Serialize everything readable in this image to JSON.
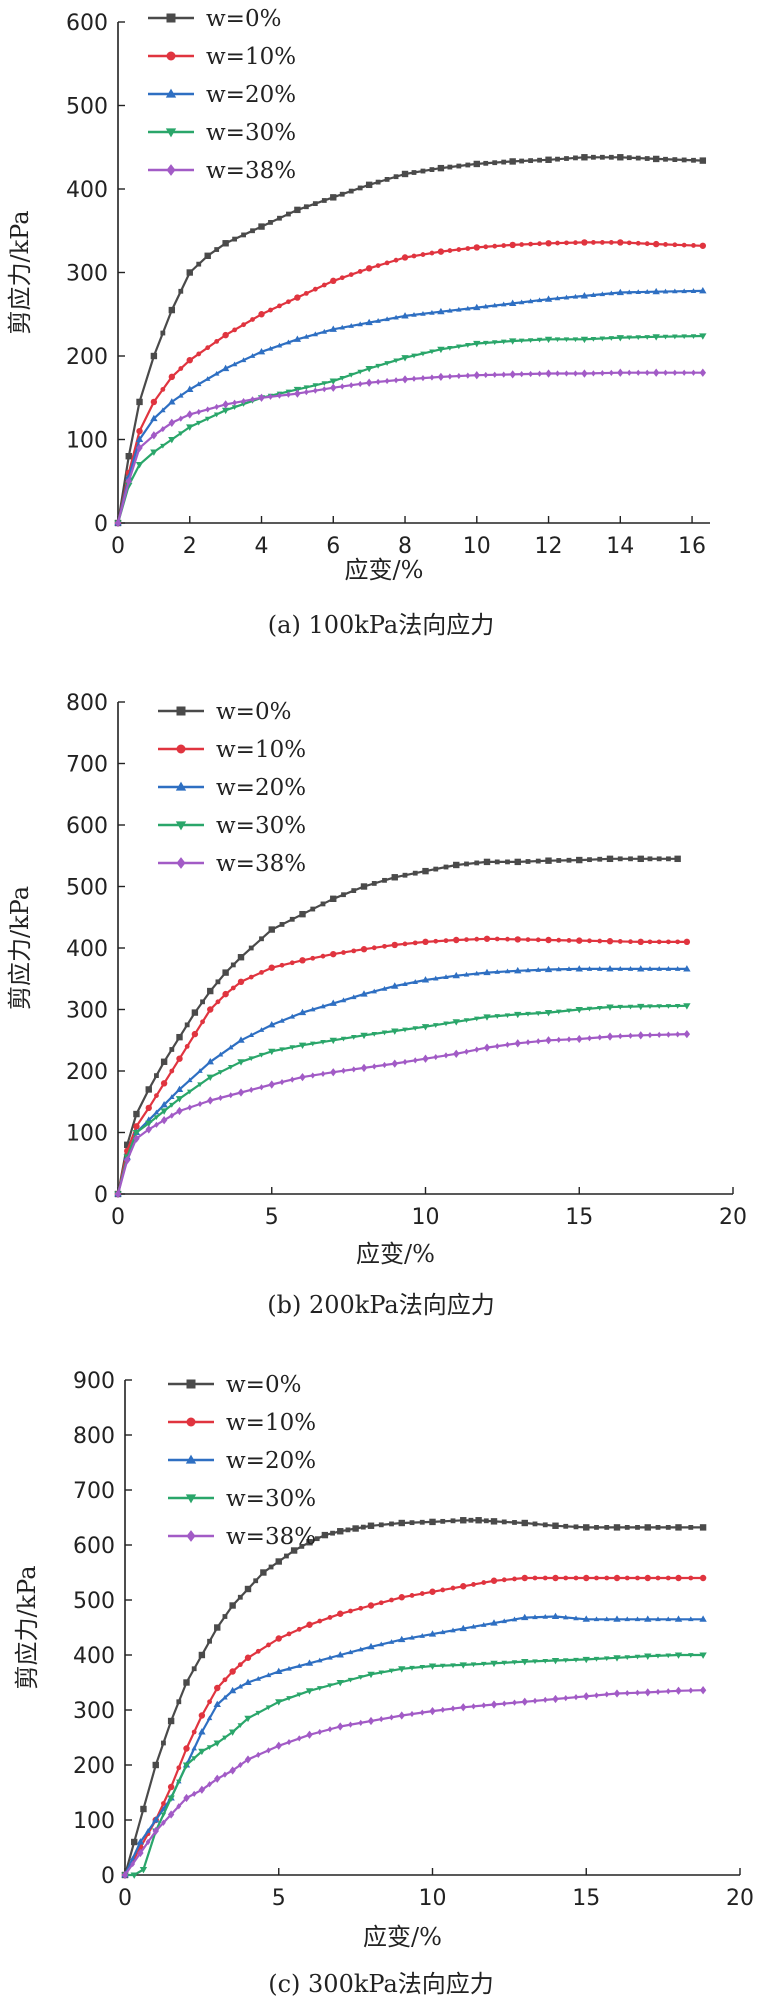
{
  "colors": {
    "w0": "#4a4a4a",
    "w10": "#e0343f",
    "w20": "#2e6fc2",
    "w30": "#2aa66a",
    "w38": "#a25bc6"
  },
  "markers": {
    "w0": "square",
    "w10": "circle",
    "w20": "triangle-up",
    "w30": "triangle-down",
    "w38": "diamond"
  },
  "legend": [
    "w=0%",
    "w=10%",
    "w=20%",
    "w=30%",
    "w=38%"
  ],
  "chart_data": [
    {
      "type": "line",
      "title": "(a) 100kPa法向应力",
      "xlabel": "应变/%",
      "ylabel": "剪应力/kPa",
      "xlim": [
        0,
        16.5
      ],
      "ylim": [
        0,
        600
      ],
      "xticks": [
        0,
        2,
        4,
        6,
        8,
        10,
        12,
        14,
        16
      ],
      "yticks": [
        0,
        100,
        200,
        300,
        400,
        500,
        600
      ],
      "legend_position": "top-left",
      "series": [
        {
          "name": "w=0%",
          "key": "w0",
          "x": [
            0,
            0.3,
            0.6,
            1,
            1.5,
            2,
            2.5,
            3,
            4,
            5,
            6,
            7,
            8,
            9,
            10,
            11,
            12,
            13,
            14,
            15,
            16.3
          ],
          "y": [
            0,
            80,
            145,
            200,
            255,
            300,
            320,
            335,
            355,
            375,
            390,
            405,
            418,
            425,
            430,
            433,
            435,
            438,
            438,
            436,
            434
          ]
        },
        {
          "name": "w=10%",
          "key": "w10",
          "x": [
            0,
            0.3,
            0.6,
            1,
            1.5,
            2,
            3,
            4,
            5,
            6,
            7,
            8,
            9,
            10,
            11,
            12,
            13,
            14,
            15,
            16.3
          ],
          "y": [
            0,
            60,
            110,
            145,
            175,
            195,
            225,
            250,
            270,
            290,
            305,
            318,
            325,
            330,
            333,
            335,
            336,
            336,
            334,
            332
          ]
        },
        {
          "name": "w=20%",
          "key": "w20",
          "x": [
            0,
            0.3,
            0.6,
            1,
            1.5,
            2,
            3,
            4,
            5,
            6,
            7,
            8,
            9,
            10,
            11,
            12,
            13,
            14,
            15,
            16.3
          ],
          "y": [
            0,
            55,
            100,
            125,
            145,
            160,
            185,
            205,
            220,
            232,
            240,
            248,
            253,
            258,
            263,
            268,
            272,
            276,
            277,
            278
          ]
        },
        {
          "name": "w=30%",
          "key": "w30",
          "x": [
            0,
            0.3,
            0.6,
            1,
            1.5,
            2,
            3,
            4,
            5,
            6,
            7,
            8,
            9,
            10,
            11,
            12,
            13,
            14,
            15,
            16.3
          ],
          "y": [
            0,
            45,
            70,
            85,
            100,
            115,
            135,
            150,
            160,
            170,
            185,
            198,
            208,
            215,
            218,
            220,
            220,
            222,
            223,
            224
          ]
        },
        {
          "name": "w=38%",
          "key": "w38",
          "x": [
            0,
            0.3,
            0.6,
            1,
            1.5,
            2,
            3,
            4,
            5,
            6,
            7,
            8,
            9,
            10,
            11,
            12,
            13,
            14,
            15,
            16.3
          ],
          "y": [
            0,
            50,
            90,
            105,
            120,
            130,
            142,
            150,
            155,
            162,
            168,
            172,
            175,
            177,
            178,
            179,
            179,
            180,
            180,
            180
          ]
        }
      ]
    },
    {
      "type": "line",
      "title": "(b) 200kPa法向应力",
      "xlabel": "应变/%",
      "ylabel": "剪应力/kPa",
      "xlim": [
        0,
        20
      ],
      "ylim": [
        0,
        800
      ],
      "xticks": [
        0,
        5,
        10,
        15,
        20
      ],
      "yticks": [
        0,
        100,
        200,
        300,
        400,
        500,
        600,
        700,
        800
      ],
      "legend_position": "top-left",
      "series": [
        {
          "name": "w=0%",
          "key": "w0",
          "x": [
            0,
            0.3,
            0.6,
            1,
            1.5,
            2,
            2.5,
            3,
            3.5,
            4,
            5,
            6,
            7,
            8,
            9,
            10,
            11,
            12,
            13,
            14,
            15,
            16,
            17,
            18.2
          ],
          "y": [
            0,
            80,
            130,
            170,
            215,
            255,
            295,
            330,
            360,
            385,
            430,
            455,
            480,
            500,
            515,
            525,
            535,
            540,
            540,
            542,
            543,
            545,
            545,
            545
          ]
        },
        {
          "name": "w=10%",
          "key": "w10",
          "x": [
            0,
            0.3,
            0.6,
            1,
            1.5,
            2,
            2.5,
            3,
            3.5,
            4,
            5,
            6,
            7,
            8,
            9,
            10,
            11,
            12,
            13,
            14,
            15,
            16,
            17,
            18.5
          ],
          "y": [
            0,
            70,
            110,
            140,
            180,
            220,
            260,
            300,
            325,
            345,
            368,
            380,
            390,
            398,
            405,
            410,
            413,
            415,
            414,
            413,
            412,
            411,
            410,
            410
          ]
        },
        {
          "name": "w=20%",
          "key": "w20",
          "x": [
            0,
            0.3,
            0.6,
            1,
            1.5,
            2,
            3,
            4,
            5,
            6,
            7,
            8,
            9,
            10,
            11,
            12,
            13,
            14,
            15,
            16,
            17,
            18.5
          ],
          "y": [
            0,
            60,
            100,
            120,
            145,
            170,
            215,
            250,
            275,
            295,
            310,
            325,
            338,
            348,
            355,
            360,
            363,
            365,
            366,
            366,
            366,
            366
          ]
        },
        {
          "name": "w=30%",
          "key": "w30",
          "x": [
            0,
            0.3,
            0.6,
            1,
            1.5,
            2,
            3,
            4,
            5,
            6,
            7,
            8,
            9,
            10,
            11,
            12,
            13,
            14,
            15,
            16,
            17,
            18.5
          ],
          "y": [
            0,
            60,
            100,
            115,
            135,
            155,
            190,
            215,
            232,
            242,
            250,
            258,
            265,
            272,
            280,
            288,
            292,
            295,
            300,
            304,
            305,
            306
          ]
        },
        {
          "name": "w=38%",
          "key": "w38",
          "x": [
            0,
            0.3,
            0.6,
            1,
            1.5,
            2,
            3,
            4,
            5,
            6,
            7,
            8,
            9,
            10,
            11,
            12,
            13,
            14,
            15,
            16,
            17,
            18.5
          ],
          "y": [
            0,
            55,
            90,
            105,
            120,
            135,
            152,
            165,
            178,
            190,
            198,
            205,
            212,
            220,
            228,
            238,
            245,
            250,
            252,
            256,
            258,
            260
          ]
        }
      ]
    },
    {
      "type": "line",
      "title": "(c) 300kPa法向应力",
      "xlabel": "应变/%",
      "ylabel": "剪应力/kPa",
      "xlim": [
        0,
        20
      ],
      "ylim": [
        0,
        900
      ],
      "xticks": [
        0,
        5,
        10,
        15,
        20
      ],
      "yticks": [
        0,
        100,
        200,
        300,
        400,
        500,
        600,
        700,
        800,
        900
      ],
      "legend_position": "top-left",
      "series": [
        {
          "name": "w=0%",
          "key": "w0",
          "x": [
            0,
            0.3,
            0.6,
            1,
            1.5,
            2,
            2.5,
            3,
            3.5,
            4,
            4.5,
            5,
            5.5,
            6,
            6.5,
            7,
            7.5,
            8,
            9,
            10,
            11,
            11.5,
            12,
            13,
            14,
            15,
            16,
            17,
            18,
            18.8
          ],
          "y": [
            0,
            60,
            120,
            200,
            280,
            350,
            400,
            450,
            490,
            520,
            550,
            570,
            590,
            605,
            618,
            625,
            630,
            635,
            640,
            642,
            645,
            645,
            643,
            640,
            635,
            632,
            632,
            632,
            632,
            632
          ]
        },
        {
          "name": "w=10%",
          "key": "w10",
          "x": [
            0,
            0.5,
            1,
            1.5,
            2,
            2.5,
            3,
            3.5,
            4,
            5,
            6,
            7,
            8,
            9,
            10,
            11,
            12,
            13,
            14,
            15,
            16,
            17,
            18,
            18.8
          ],
          "y": [
            0,
            50,
            100,
            160,
            230,
            290,
            340,
            370,
            395,
            430,
            455,
            475,
            490,
            505,
            515,
            525,
            535,
            540,
            540,
            540,
            540,
            540,
            540,
            540
          ]
        },
        {
          "name": "w=20%",
          "key": "w20",
          "x": [
            0,
            0.5,
            1,
            1.5,
            2,
            2.5,
            3,
            3.5,
            4,
            5,
            6,
            7,
            8,
            9,
            10,
            11,
            12,
            13,
            14,
            15,
            16,
            17,
            18,
            18.8
          ],
          "y": [
            0,
            60,
            100,
            140,
            200,
            260,
            310,
            335,
            350,
            370,
            385,
            400,
            415,
            428,
            438,
            448,
            458,
            468,
            470,
            465,
            465,
            465,
            465,
            465
          ]
        },
        {
          "name": "w=30%",
          "key": "w30",
          "x": [
            0,
            0.3,
            0.6,
            1,
            1.5,
            2,
            2.5,
            3,
            3.5,
            4,
            5,
            6,
            7,
            8,
            9,
            10,
            11,
            12,
            13,
            14,
            15,
            16,
            17,
            18,
            18.8
          ],
          "y": [
            0,
            0,
            10,
            80,
            140,
            200,
            225,
            240,
            260,
            285,
            315,
            335,
            350,
            365,
            375,
            380,
            382,
            385,
            388,
            390,
            392,
            395,
            398,
            400,
            400
          ]
        },
        {
          "name": "w=38%",
          "key": "w38",
          "x": [
            0,
            0.5,
            1,
            1.5,
            2,
            2.5,
            3,
            3.5,
            4,
            5,
            6,
            7,
            8,
            9,
            10,
            11,
            12,
            13,
            14,
            15,
            16,
            17,
            18,
            18.8
          ],
          "y": [
            0,
            40,
            80,
            110,
            140,
            155,
            175,
            190,
            210,
            235,
            255,
            270,
            280,
            290,
            298,
            305,
            310,
            315,
            320,
            325,
            330,
            332,
            335,
            336
          ]
        }
      ]
    }
  ]
}
